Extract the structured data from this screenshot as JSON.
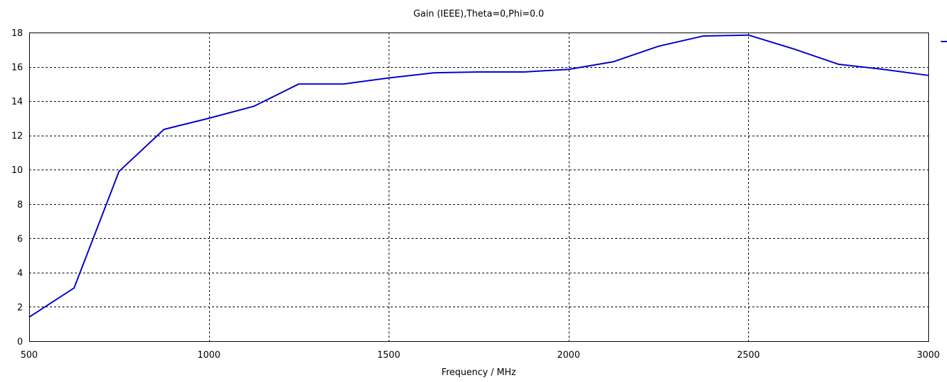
{
  "chart_data": {
    "type": "line",
    "title": "Gain (IEEE),Theta=0,Phi=0.0",
    "xlabel": "Frequency / MHz",
    "ylabel": "",
    "xlim": [
      500,
      3000
    ],
    "ylim": [
      0,
      18
    ],
    "xticks": [
      500,
      1000,
      1500,
      2000,
      2500,
      3000
    ],
    "yticks": [
      0,
      2,
      4,
      6,
      8,
      10,
      12,
      14,
      16,
      18
    ],
    "grid": true,
    "grid_style": "dashed",
    "legend": "right",
    "series": [
      {
        "color": "#0000cc",
        "x": [
          500,
          625,
          750,
          875,
          1000,
          1125,
          1250,
          1375,
          1500,
          1625,
          1750,
          1875,
          2000,
          2125,
          2250,
          2375,
          2500,
          2625,
          2750,
          2875,
          3000
        ],
        "y": [
          1.4,
          3.1,
          9.9,
          12.35,
          13.0,
          13.7,
          15.0,
          15.0,
          15.35,
          15.65,
          15.7,
          15.7,
          15.85,
          16.3,
          17.2,
          17.8,
          17.85,
          17.05,
          16.15,
          15.85,
          15.5
        ]
      }
    ]
  }
}
